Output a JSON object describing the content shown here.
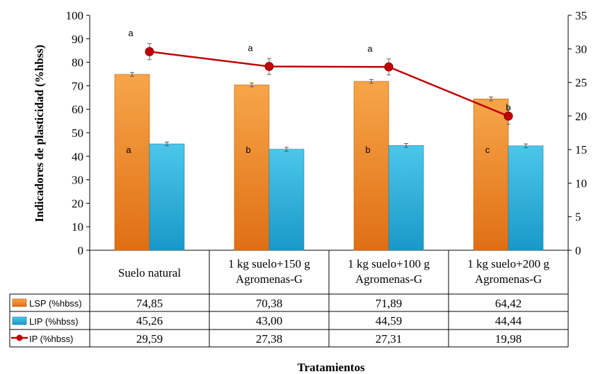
{
  "chart_data": {
    "type": "bar",
    "xlabel": "Tratamientos",
    "ylabel": "Indicadores de plasticidad (%hbss)",
    "ylim": [
      0,
      100
    ],
    "yticks": [
      "0",
      "10",
      "20",
      "30",
      "40",
      "50",
      "60",
      "70",
      "80",
      "90",
      "100"
    ],
    "y2lim": [
      0,
      35
    ],
    "y2ticks": [
      "0",
      "5",
      "10",
      "15",
      "20",
      "25",
      "30",
      "35"
    ],
    "categories": [
      [
        "Suelo natural"
      ],
      [
        "1 kg suelo+150 g",
        "Agromenas-G"
      ],
      [
        "1 kg suelo+100 g",
        "Agromenas-G"
      ],
      [
        "1 kg suelo+200 g",
        "Agromenas-G"
      ]
    ],
    "series": [
      {
        "name": "LSP (%hbss)",
        "kind": "bar",
        "axis": "left",
        "color": "#ee8a2a",
        "values": [
          74.85,
          70.38,
          71.89,
          64.42
        ],
        "labels": [
          "74,85",
          "70,38",
          "71,89",
          "64,42"
        ],
        "errors": [
          0.8,
          0.8,
          0.8,
          0.8
        ],
        "letters": [
          "a",
          "b",
          "b",
          "c"
        ]
      },
      {
        "name": "LIP  (%hbss)",
        "kind": "bar",
        "axis": "left",
        "color": "#2fb0d8",
        "values": [
          45.26,
          43.0,
          44.59,
          44.44
        ],
        "labels": [
          "45,26",
          "43,00",
          "44,59",
          "44,44"
        ],
        "errors": [
          0.8,
          0.8,
          0.8,
          0.8
        ]
      },
      {
        "name": "IP (%hbss)",
        "kind": "line",
        "axis": "right",
        "color": "#c00000",
        "values": [
          29.59,
          27.38,
          27.31,
          19.98
        ],
        "labels": [
          "29,59",
          "27,38",
          "27,31",
          "19,98"
        ],
        "errors": [
          1.2,
          1.2,
          1.2,
          1.2
        ],
        "letters": [
          "a",
          "a",
          "a",
          "b"
        ]
      }
    ],
    "grid": false,
    "legend": "table below chart"
  }
}
